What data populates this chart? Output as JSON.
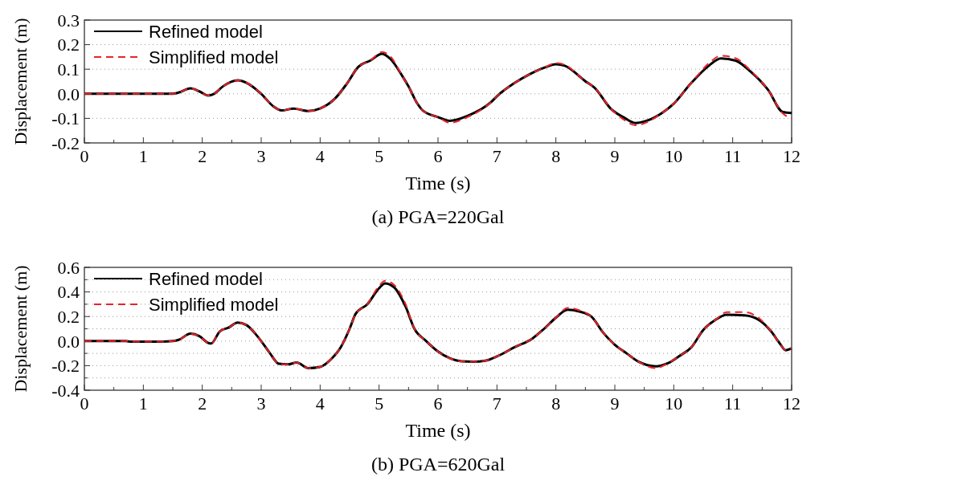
{
  "chart_data": [
    {
      "type": "line",
      "title": "(a)  PGA=220Gal",
      "xlabel": "Time (s)",
      "ylabel": "Displacement (m)",
      "xlim": [
        0,
        12
      ],
      "ylim": [
        -0.2,
        0.3
      ],
      "xticks": [
        0,
        {
          "value": 0.5,
          "label": null
        },
        1,
        {
          "value": 1.5,
          "label": null
        },
        2,
        {
          "value": 2.5,
          "label": null
        },
        3,
        {
          "value": 3.5,
          "label": null
        },
        4,
        {
          "value": 4.5,
          "label": null
        },
        5,
        {
          "value": 5.5,
          "label": null
        },
        6,
        {
          "value": 6.5,
          "label": null
        },
        7,
        {
          "value": 7.5,
          "label": null
        },
        8,
        {
          "value": 8.5,
          "label": null
        },
        9,
        {
          "value": 9.5,
          "label": null
        },
        10,
        {
          "value": 10.5,
          "label": null
        },
        11,
        {
          "value": 11.5,
          "label": null
        },
        12
      ],
      "yticks": [
        {
          "value": -0.2,
          "label": "-0.2"
        },
        {
          "value": -0.1,
          "label": "-0.1"
        },
        {
          "value": 0,
          "label": "0.0"
        },
        {
          "value": 0.1,
          "label": "0.1"
        },
        {
          "value": 0.2,
          "label": "0.2"
        },
        {
          "value": 0.3,
          "label": "0.3"
        }
      ],
      "grid": "y",
      "legend": "top left",
      "x": [
        0,
        1.5,
        1.6,
        1.8,
        1.95,
        2.1,
        2.2,
        2.35,
        2.6,
        2.75,
        3.0,
        3.2,
        3.35,
        3.55,
        3.8,
        4.0,
        4.25,
        4.45,
        4.65,
        4.85,
        5.05,
        5.2,
        5.4,
        5.5,
        5.65,
        5.75,
        6.0,
        6.2,
        6.5,
        6.9,
        7.0,
        7.3,
        7.55,
        7.8,
        8.0,
        8.15,
        8.5,
        8.65,
        8.95,
        9.15,
        9.35,
        9.55,
        9.8,
        10.0,
        10.3,
        10.6,
        10.8,
        11.05,
        11.3,
        11.6,
        11.85,
        12.0
      ],
      "series": [
        {
          "name": "Refined model",
          "color": "#000000",
          "line_style": "solid",
          "values": [
            0,
            0,
            0.005,
            0.022,
            0.01,
            -0.007,
            0,
            0.03,
            0.055,
            0.045,
            0,
            -0.05,
            -0.068,
            -0.06,
            -0.07,
            -0.06,
            -0.02,
            0.04,
            0.11,
            0.135,
            0.163,
            0.14,
            0.07,
            0.03,
            -0.04,
            -0.07,
            -0.095,
            -0.11,
            -0.09,
            -0.034,
            -0.01,
            0.044,
            0.079,
            0.106,
            0.12,
            0.114,
            0.051,
            0.026,
            -0.065,
            -0.096,
            -0.119,
            -0.109,
            -0.078,
            -0.04,
            0.045,
            0.115,
            0.144,
            0.135,
            0.091,
            0.016,
            -0.074,
            -0.078
          ]
        },
        {
          "name": "Simplified model",
          "color": "#e8232a",
          "line_style": "dashed",
          "values": [
            0,
            0,
            0.005,
            0.022,
            0.01,
            -0.007,
            0,
            0.03,
            0.055,
            0.045,
            0,
            -0.05,
            -0.068,
            -0.06,
            -0.07,
            -0.06,
            -0.02,
            0.04,
            0.11,
            0.135,
            0.17,
            0.15,
            0.07,
            0.03,
            -0.04,
            -0.07,
            -0.095,
            -0.118,
            -0.095,
            -0.034,
            -0.01,
            0.044,
            0.079,
            0.106,
            0.125,
            0.118,
            0.051,
            0.026,
            -0.065,
            -0.105,
            -0.128,
            -0.115,
            -0.078,
            -0.04,
            0.045,
            0.125,
            0.155,
            0.145,
            0.095,
            0.016,
            -0.08,
            -0.1
          ]
        }
      ]
    },
    {
      "type": "line",
      "title": "(b)  PGA=620Gal",
      "xlabel": "Time (s)",
      "ylabel": "Displacement (m)",
      "xlim": [
        0,
        12
      ],
      "ylim": [
        -0.4,
        0.6
      ],
      "xticks": [
        0,
        {
          "value": 0.5,
          "label": null
        },
        1,
        {
          "value": 1.5,
          "label": null
        },
        2,
        {
          "value": 2.5,
          "label": null
        },
        3,
        {
          "value": 3.5,
          "label": null
        },
        4,
        {
          "value": 4.5,
          "label": null
        },
        5,
        {
          "value": 5.5,
          "label": null
        },
        6,
        {
          "value": 6.5,
          "label": null
        },
        7,
        {
          "value": 7.5,
          "label": null
        },
        8,
        {
          "value": 8.5,
          "label": null
        },
        9,
        {
          "value": 9.5,
          "label": null
        },
        10,
        {
          "value": 10.5,
          "label": null
        },
        11,
        {
          "value": 11.5,
          "label": null
        },
        12
      ],
      "yticks": [
        {
          "value": -0.4,
          "label": "-0.4"
        },
        {
          "value": -0.3,
          "label": null
        },
        {
          "value": -0.2,
          "label": "-0.2"
        },
        {
          "value": -0.1,
          "label": null
        },
        {
          "value": 0,
          "label": "0.0"
        },
        {
          "value": 0.1,
          "label": null
        },
        {
          "value": 0.2,
          "label": "0.2"
        },
        {
          "value": 0.3,
          "label": null
        },
        {
          "value": 0.4,
          "label": "0.4"
        },
        {
          "value": 0.5,
          "label": null
        },
        {
          "value": 0.6,
          "label": "0.6"
        }
      ],
      "grid": "y",
      "legend": "top left",
      "x": [
        0,
        0.7,
        0.8,
        1.3,
        1.5,
        1.6,
        1.8,
        1.95,
        2.1,
        2.15,
        2.3,
        2.45,
        2.6,
        2.75,
        2.9,
        3.0,
        3.15,
        3.3,
        3.45,
        3.6,
        3.8,
        4.0,
        4.2,
        4.35,
        4.5,
        4.6,
        4.8,
        5.0,
        5.1,
        5.25,
        5.45,
        5.6,
        5.8,
        6.0,
        6.2,
        6.4,
        6.6,
        6.8,
        7.0,
        7.3,
        7.6,
        7.8,
        8.0,
        8.2,
        8.4,
        8.6,
        8.8,
        9.0,
        9.2,
        9.4,
        9.7,
        9.9,
        10.1,
        10.3,
        10.5,
        10.7,
        10.9,
        11.2,
        11.45,
        11.65,
        11.8,
        11.9,
        12.0
      ],
      "series": [
        {
          "name": "Refined model",
          "color": "#000000",
          "line_style": "solid",
          "values": [
            0,
            0,
            -0.005,
            -0.005,
            0,
            0.01,
            0.06,
            0.04,
            -0.015,
            -0.02,
            0.08,
            0.11,
            0.15,
            0.13,
            0.06,
            0,
            -0.1,
            -0.185,
            -0.19,
            -0.175,
            -0.22,
            -0.21,
            -0.14,
            -0.05,
            0.1,
            0.22,
            0.3,
            0.43,
            0.47,
            0.44,
            0.28,
            0.1,
            0,
            -0.085,
            -0.14,
            -0.165,
            -0.168,
            -0.16,
            -0.125,
            -0.05,
            0.02,
            0.1,
            0.19,
            0.255,
            0.24,
            0.2,
            0.07,
            -0.03,
            -0.1,
            -0.167,
            -0.205,
            -0.18,
            -0.12,
            -0.05,
            0.09,
            0.17,
            0.215,
            0.21,
            0.17,
            0.08,
            -0.02,
            -0.075,
            -0.06
          ]
        },
        {
          "name": "Simplified model",
          "color": "#e8232a",
          "line_style": "dashed",
          "values": [
            0,
            0,
            -0.005,
            -0.005,
            0,
            0.01,
            0.06,
            0.04,
            -0.015,
            -0.02,
            0.08,
            0.11,
            0.15,
            0.13,
            0.06,
            0,
            -0.1,
            -0.185,
            -0.19,
            -0.175,
            -0.22,
            -0.21,
            -0.14,
            -0.05,
            0.1,
            0.22,
            0.3,
            0.45,
            0.49,
            0.46,
            0.3,
            0.1,
            0,
            -0.085,
            -0.14,
            -0.165,
            -0.168,
            -0.16,
            -0.125,
            -0.05,
            0.02,
            0.1,
            0.19,
            0.27,
            0.25,
            0.2,
            0.07,
            -0.03,
            -0.1,
            -0.167,
            -0.22,
            -0.18,
            -0.12,
            -0.05,
            0.09,
            0.17,
            0.235,
            0.235,
            0.185,
            0.08,
            -0.02,
            -0.075,
            -0.06
          ]
        }
      ]
    }
  ]
}
